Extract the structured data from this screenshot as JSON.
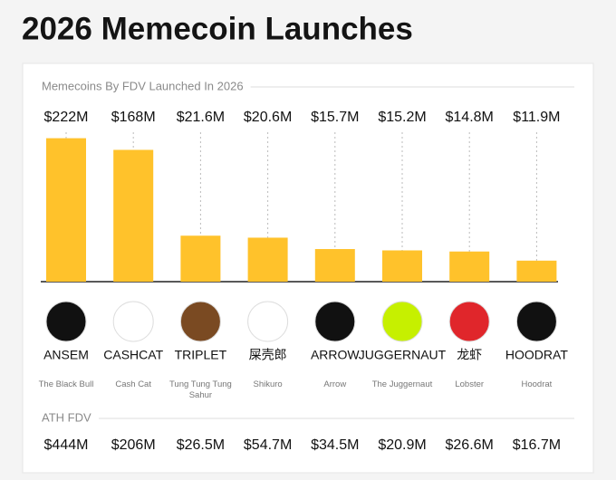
{
  "chart_data": {
    "type": "bar",
    "title": "2026 Memecoin Launches",
    "subtitle": "Memecoins By FDV Launched In 2026",
    "categories": [
      "ANSEM",
      "CASHCAT",
      "TRIPLET",
      "屎壳郎",
      "ARROW",
      "JUGGERNAUT",
      "龙虾",
      "HOODRAT"
    ],
    "full_names": [
      "The Black Bull",
      "Cash Cat",
      "Tung Tung Tung Sahur",
      "Shikuro",
      "Arrow",
      "The Juggernaut",
      "Lobster",
      "Hoodrat"
    ],
    "values": [
      222,
      168,
      21.6,
      20.6,
      15.7,
      15.2,
      14.8,
      11.9
    ],
    "value_labels": [
      "$222M",
      "$168M",
      "$21.6M",
      "$20.6M",
      "$15.7M",
      "$15.2M",
      "$14.8M",
      "$11.9M"
    ],
    "color": "#ffc22b",
    "log_scale": true,
    "ylim": [
      7.2,
      240
    ],
    "ath_title": "ATH FDV",
    "ath_values": [
      444,
      206,
      26.5,
      54.7,
      34.5,
      20.9,
      26.6,
      16.7
    ],
    "ath_value_labels": [
      "$444M",
      "$206M",
      "$26.5M",
      "$54.7M",
      "$34.5M",
      "$20.9M",
      "$26.6M",
      "$16.7M"
    ]
  }
}
